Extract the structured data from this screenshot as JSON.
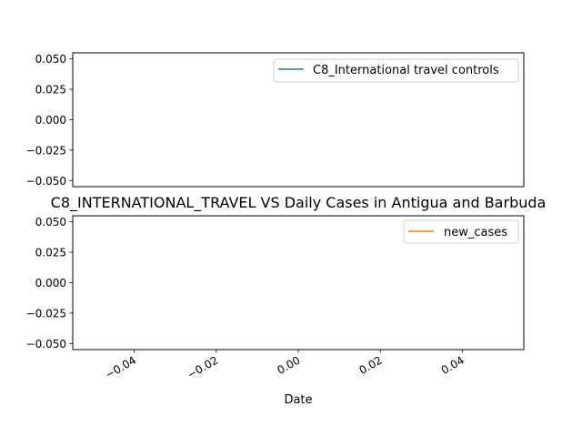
{
  "chart_data": [
    {
      "type": "line",
      "title": "",
      "xlabel": "",
      "ylabel": "",
      "series": [
        {
          "name": "C8_International travel controls",
          "color": "#1f77b4",
          "x": [],
          "values": []
        }
      ],
      "ylim": [
        -0.055,
        0.055
      ],
      "yticks": [
        "0.050",
        "0.025",
        "0.000",
        "−0.025",
        "−0.050"
      ],
      "ytick_values": [
        0.05,
        0.025,
        0.0,
        -0.025,
        -0.05
      ],
      "legend": "top-right",
      "grid": false
    },
    {
      "type": "line",
      "title": "C8_INTERNATIONAL_TRAVEL VS Daily Cases in Antigua and Barbuda",
      "xlabel": "Date",
      "ylabel": "",
      "series": [
        {
          "name": "new_cases",
          "color": "#ff7f0e",
          "x": [],
          "values": []
        }
      ],
      "xlim": [
        -0.055,
        0.055
      ],
      "xticks": [
        "−0.04",
        "−0.02",
        "0.00",
        "0.02",
        "0.04"
      ],
      "xtick_values": [
        -0.04,
        -0.02,
        0.0,
        0.02,
        0.04
      ],
      "ylim": [
        -0.055,
        0.055
      ],
      "yticks": [
        "0.050",
        "0.025",
        "0.000",
        "−0.025",
        "−0.050"
      ],
      "ytick_values": [
        0.05,
        0.025,
        0.0,
        -0.025,
        -0.05
      ],
      "legend": "top-right",
      "grid": false
    }
  ]
}
